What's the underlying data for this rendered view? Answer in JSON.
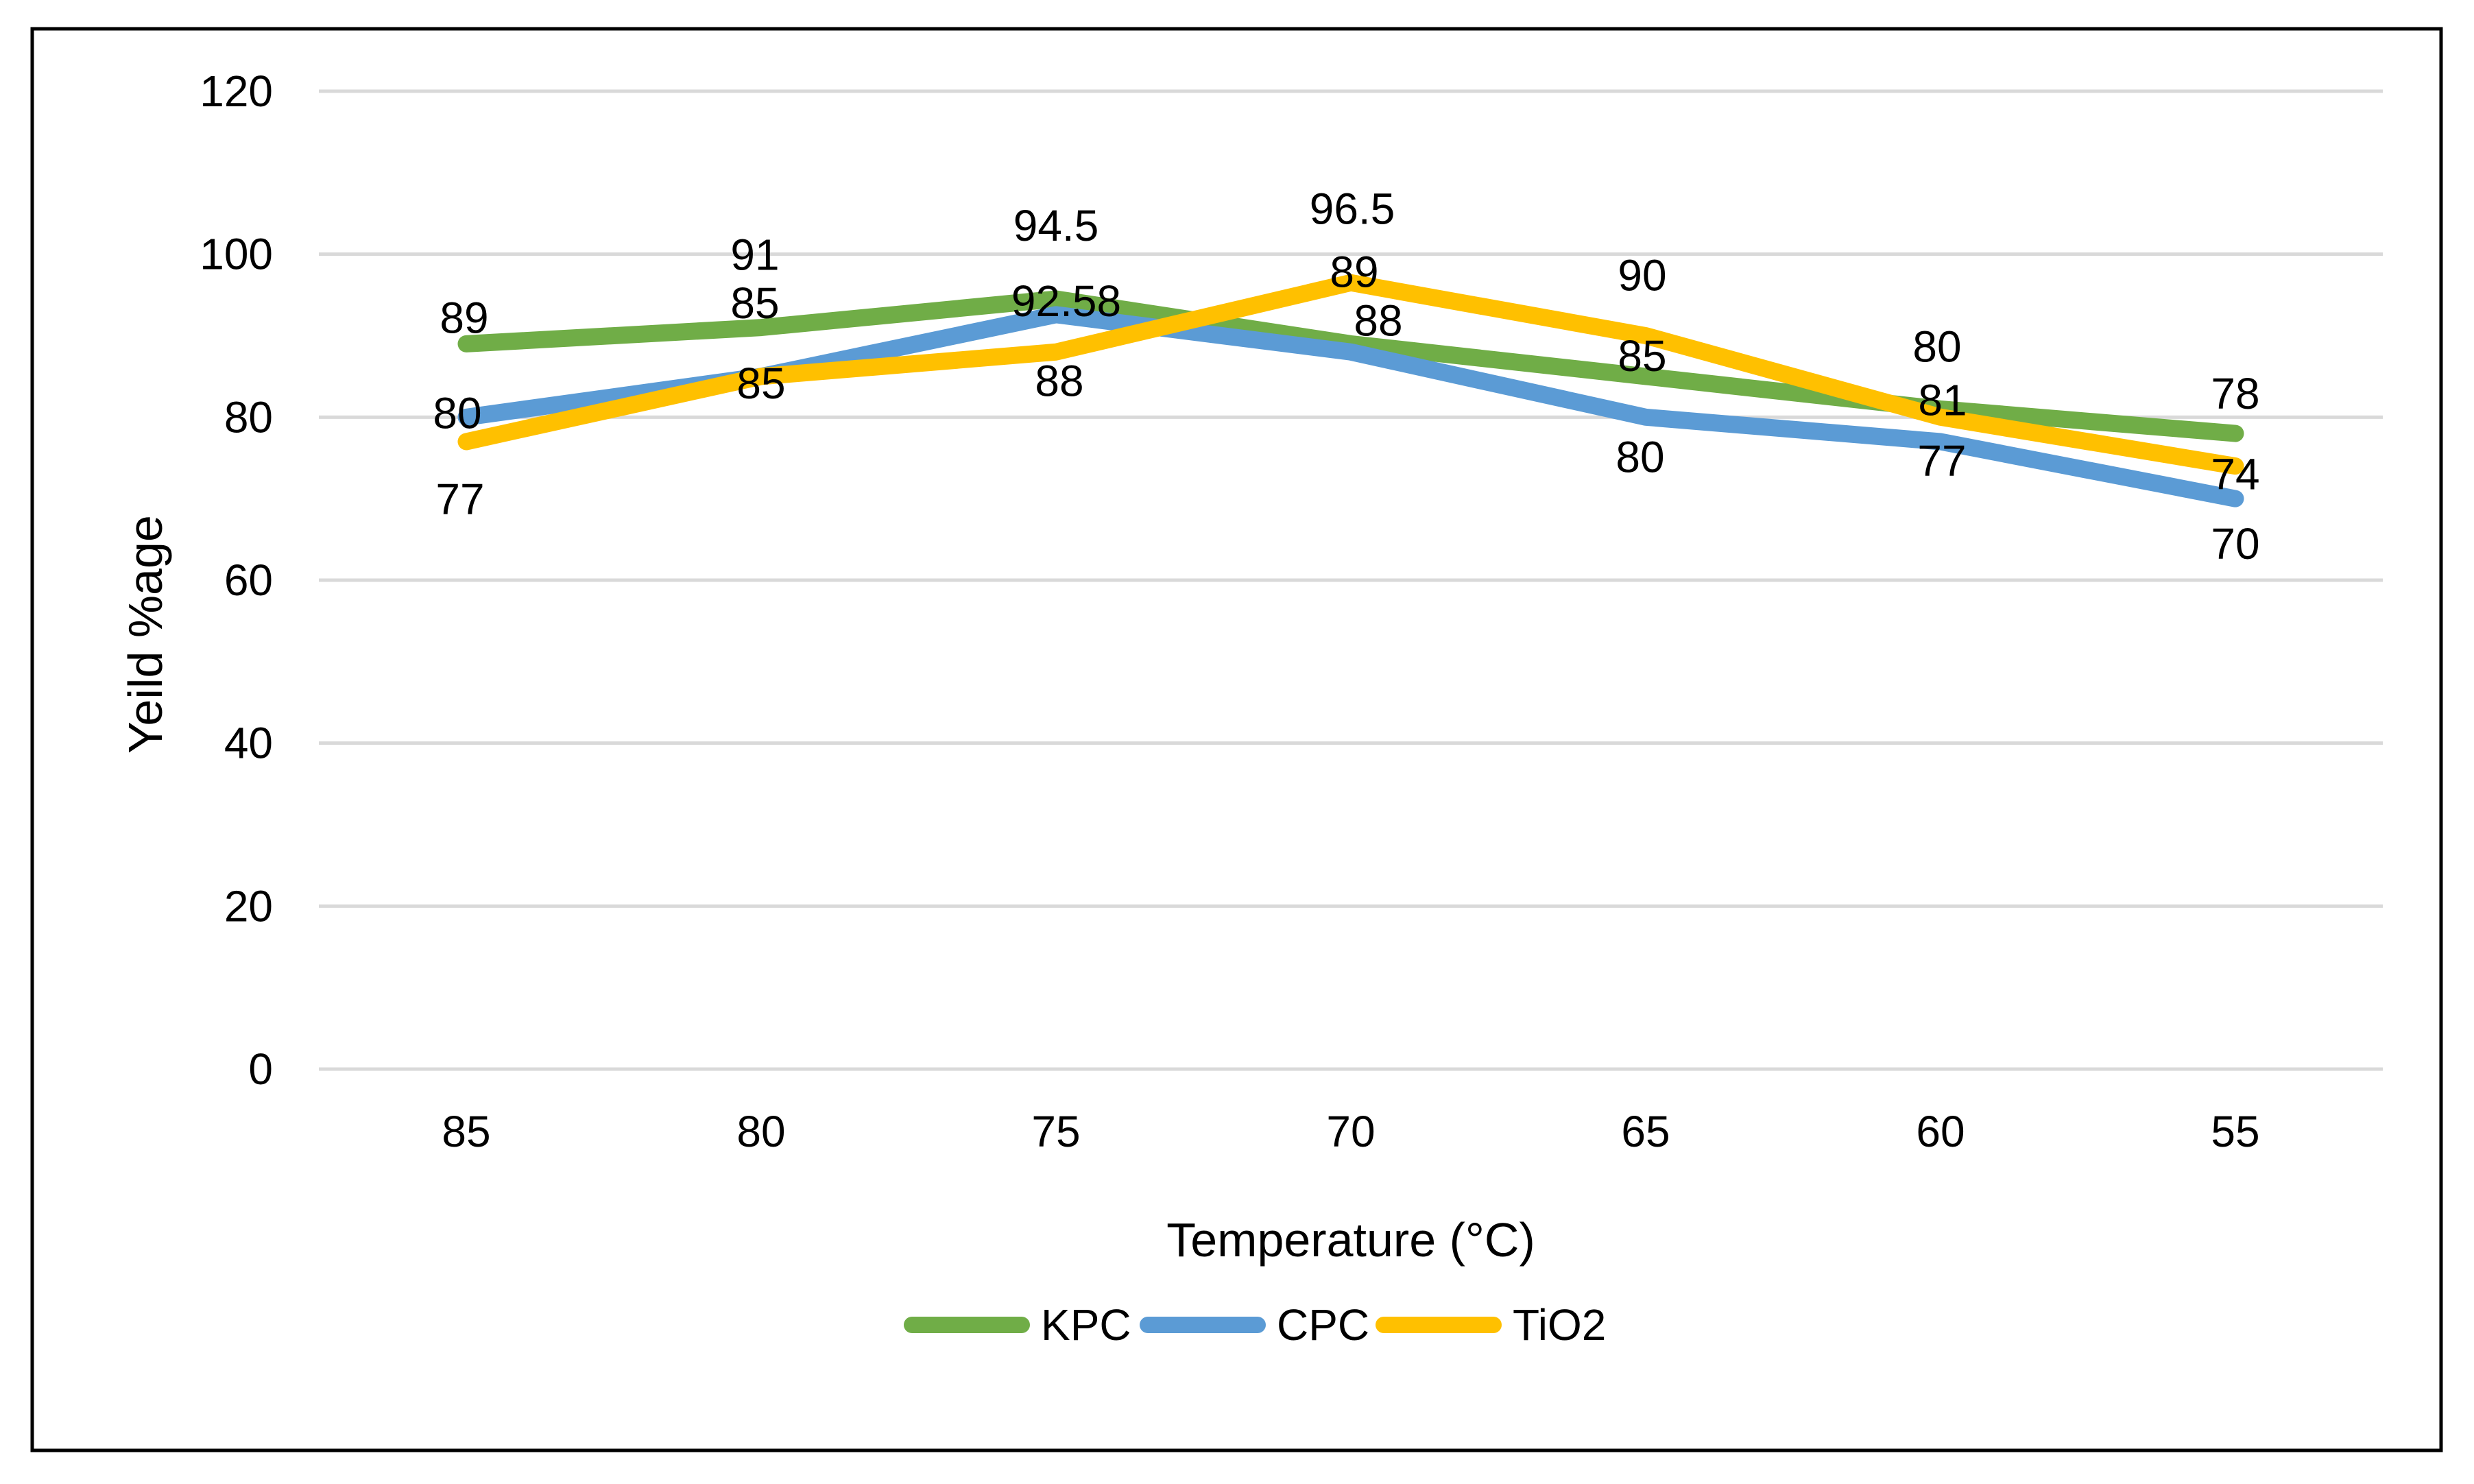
{
  "chart_data": {
    "type": "line",
    "title": "",
    "xlabel": "Temperature (°C)",
    "ylabel": "Yeild %age",
    "categories": [
      "85",
      "80",
      "75",
      "70",
      "65",
      "60",
      "55"
    ],
    "y_ticks": [
      0,
      20,
      40,
      60,
      80,
      100,
      120
    ],
    "ylim": [
      0,
      120
    ],
    "grid": "horizontal",
    "legend_position": "bottom",
    "series": [
      {
        "name": "KPC",
        "color": "#70AD47",
        "values": [
          89,
          91,
          94.5,
          89,
          85,
          81,
          78
        ],
        "data_labels": [
          "89",
          "91",
          "94.5",
          "89",
          "85",
          "81",
          "78"
        ]
      },
      {
        "name": "CPC",
        "color": "#5B9BD5",
        "values": [
          80,
          85,
          92.58,
          88,
          80,
          77,
          70
        ],
        "data_labels": [
          "80",
          "85",
          "92.58",
          "88",
          "80",
          "77",
          "70"
        ]
      },
      {
        "name": "TiO2",
        "color": "#FFC000",
        "values": [
          77,
          85,
          88,
          96.5,
          90,
          80,
          74
        ],
        "data_labels": [
          "77",
          "85",
          "88",
          "96.5",
          "90",
          "80",
          "74"
        ]
      }
    ],
    "styles": {
      "gridline_color": "#D9D9D9",
      "border_color": "#000000",
      "text_color": "#000000",
      "background": "#FFFFFF"
    }
  }
}
